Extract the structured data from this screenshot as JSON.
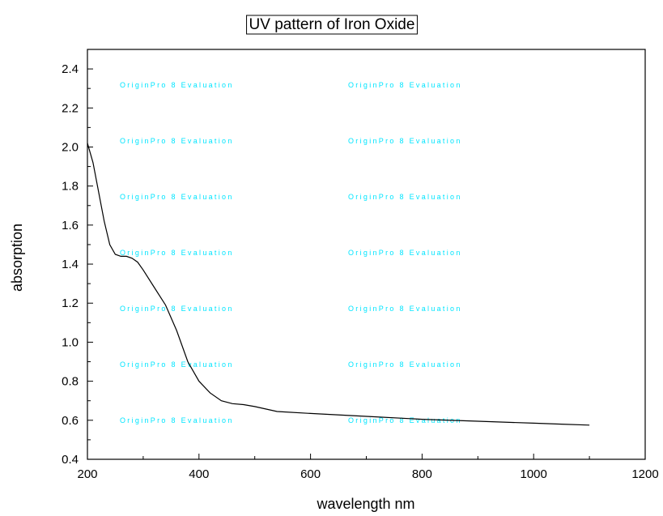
{
  "chart_data": {
    "type": "line",
    "title": "UV pattern of  Iron Oxide",
    "xlabel": "wavelength nm",
    "ylabel": "absorption",
    "xlim": [
      200,
      1200
    ],
    "ylim": [
      0.4,
      2.5
    ],
    "xticks": [
      200,
      400,
      600,
      800,
      1000,
      1200
    ],
    "yticks": [
      0.4,
      0.6,
      0.8,
      1.0,
      1.2,
      1.4,
      1.6,
      1.8,
      2.0,
      2.2,
      2.4
    ],
    "grid": false,
    "line_color": "#000000",
    "series": [
      {
        "x": [
          200,
          210,
          220,
          230,
          240,
          250,
          260,
          270,
          280,
          290,
          300,
          320,
          340,
          360,
          380,
          400,
          420,
          440,
          460,
          480,
          500,
          540,
          600,
          700,
          800,
          900,
          1000,
          1050,
          1100
        ],
        "y": [
          2.02,
          1.92,
          1.77,
          1.62,
          1.5,
          1.45,
          1.44,
          1.44,
          1.43,
          1.41,
          1.37,
          1.28,
          1.19,
          1.06,
          0.9,
          0.8,
          0.74,
          0.7,
          0.685,
          0.68,
          0.67,
          0.645,
          0.635,
          0.62,
          0.605,
          0.595,
          0.585,
          0.58,
          0.575
        ]
      }
    ]
  },
  "watermark": {
    "text": "OriginPro 8 Evaluation",
    "color": "#00e5ff"
  }
}
